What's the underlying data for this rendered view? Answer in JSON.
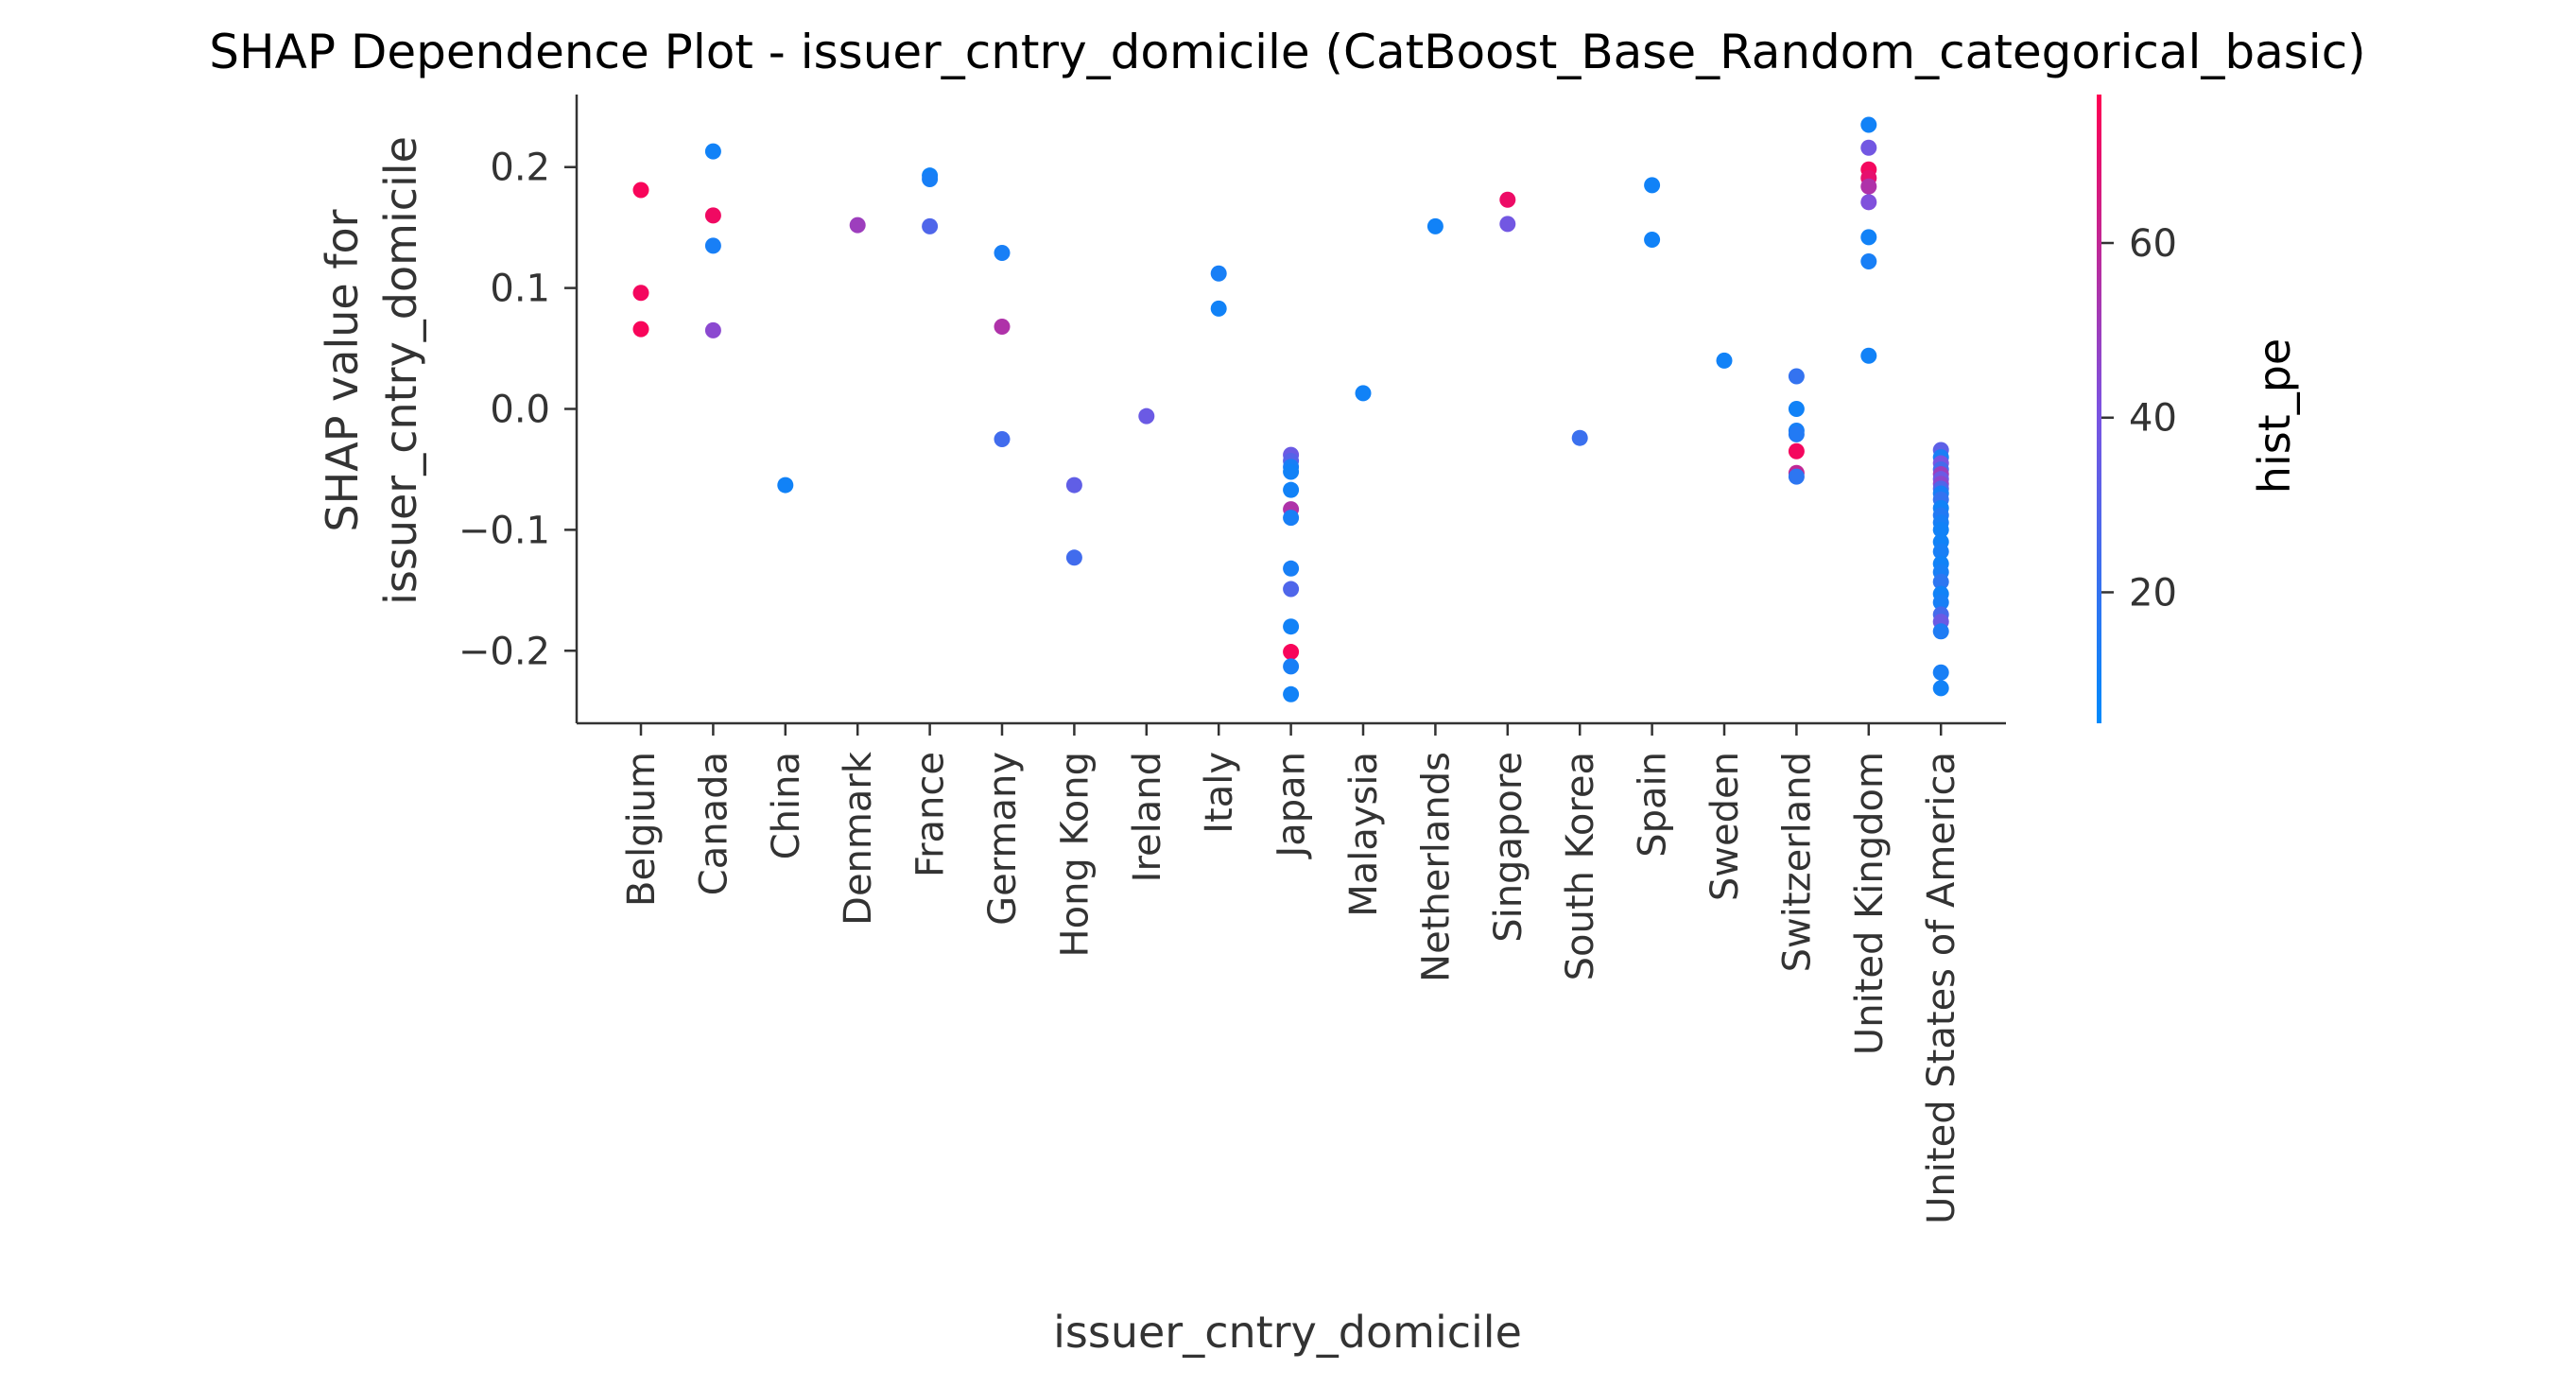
{
  "chart_data": {
    "type": "scatter",
    "title": "SHAP Dependence Plot - issuer_cntry_domicile (CatBoost_Base_Random_categorical_basic)",
    "xlabel": "issuer_cntry_domicile",
    "ylabel": [
      "SHAP value for",
      "issuer_cntry_domicile"
    ],
    "ylim": [
      -0.26,
      0.26
    ],
    "yticks": [
      -0.2,
      -0.1,
      0.0,
      0.1,
      0.2
    ],
    "ytick_labels": [
      "−0.2",
      "−0.1",
      "0.0",
      "0.1",
      "0.2"
    ],
    "categories": [
      "Belgium",
      "Canada",
      "China",
      "Denmark",
      "France",
      "Germany",
      "Hong Kong",
      "Ireland",
      "Italy",
      "Japan",
      "Malaysia",
      "Netherlands",
      "Singapore",
      "South Korea",
      "Spain",
      "Sweden",
      "Switzerland",
      "United Kingdom",
      "United States of America"
    ],
    "colorbar": {
      "label": "hist_pe",
      "range": [
        5,
        77
      ],
      "ticks": [
        20,
        40,
        60
      ],
      "tick_labels": [
        "20",
        "40",
        "60"
      ],
      "low_color": "#008afb",
      "mid_color": "#7c52e0",
      "high_color": "#ff0052"
    },
    "points": [
      {
        "category": "Belgium",
        "shap": 0.181,
        "hist_pe": 75
      },
      {
        "category": "Belgium",
        "shap": 0.096,
        "hist_pe": 74
      },
      {
        "category": "Belgium",
        "shap": 0.066,
        "hist_pe": 75
      },
      {
        "category": "Canada",
        "shap": 0.213,
        "hist_pe": 10
      },
      {
        "category": "Canada",
        "shap": 0.16,
        "hist_pe": 73
      },
      {
        "category": "Canada",
        "shap": 0.135,
        "hist_pe": 12
      },
      {
        "category": "Canada",
        "shap": 0.065,
        "hist_pe": 45
      },
      {
        "category": "China",
        "shap": -0.063,
        "hist_pe": 10
      },
      {
        "category": "Denmark",
        "shap": 0.152,
        "hist_pe": 50
      },
      {
        "category": "France",
        "shap": 0.193,
        "hist_pe": 10
      },
      {
        "category": "France",
        "shap": 0.19,
        "hist_pe": 12
      },
      {
        "category": "France",
        "shap": 0.151,
        "hist_pe": 28
      },
      {
        "category": "Germany",
        "shap": 0.129,
        "hist_pe": 12
      },
      {
        "category": "Germany",
        "shap": 0.068,
        "hist_pe": 55
      },
      {
        "category": "Germany",
        "shap": -0.025,
        "hist_pe": 24
      },
      {
        "category": "Hong Kong",
        "shap": -0.063,
        "hist_pe": 33
      },
      {
        "category": "Hong Kong",
        "shap": -0.123,
        "hist_pe": 24
      },
      {
        "category": "Ireland",
        "shap": -0.006,
        "hist_pe": 36
      },
      {
        "category": "Italy",
        "shap": 0.112,
        "hist_pe": 12
      },
      {
        "category": "Italy",
        "shap": 0.083,
        "hist_pe": 10
      },
      {
        "category": "Japan",
        "shap": -0.038,
        "hist_pe": 36
      },
      {
        "category": "Japan",
        "shap": -0.043,
        "hist_pe": 30
      },
      {
        "category": "Japan",
        "shap": -0.048,
        "hist_pe": 12
      },
      {
        "category": "Japan",
        "shap": -0.052,
        "hist_pe": 10
      },
      {
        "category": "Japan",
        "shap": -0.067,
        "hist_pe": 10
      },
      {
        "category": "Japan",
        "shap": -0.083,
        "hist_pe": 55
      },
      {
        "category": "Japan",
        "shap": -0.09,
        "hist_pe": 12
      },
      {
        "category": "Japan",
        "shap": -0.132,
        "hist_pe": 12
      },
      {
        "category": "Japan",
        "shap": -0.149,
        "hist_pe": 28
      },
      {
        "category": "Japan",
        "shap": -0.18,
        "hist_pe": 10
      },
      {
        "category": "Japan",
        "shap": -0.201,
        "hist_pe": 75
      },
      {
        "category": "Japan",
        "shap": -0.213,
        "hist_pe": 12
      },
      {
        "category": "Japan",
        "shap": -0.236,
        "hist_pe": 10
      },
      {
        "category": "Malaysia",
        "shap": 0.013,
        "hist_pe": 10
      },
      {
        "category": "Netherlands",
        "shap": 0.151,
        "hist_pe": 10
      },
      {
        "category": "Singapore",
        "shap": 0.173,
        "hist_pe": 72
      },
      {
        "category": "Singapore",
        "shap": 0.153,
        "hist_pe": 38
      },
      {
        "category": "South Korea",
        "shap": -0.024,
        "hist_pe": 22
      },
      {
        "category": "Spain",
        "shap": 0.185,
        "hist_pe": 10
      },
      {
        "category": "Spain",
        "shap": 0.14,
        "hist_pe": 10
      },
      {
        "category": "Sweden",
        "shap": 0.04,
        "hist_pe": 10
      },
      {
        "category": "Switzerland",
        "shap": 0.027,
        "hist_pe": 20
      },
      {
        "category": "Switzerland",
        "shap": 0.0,
        "hist_pe": 10
      },
      {
        "category": "Switzerland",
        "shap": -0.018,
        "hist_pe": 12
      },
      {
        "category": "Switzerland",
        "shap": -0.021,
        "hist_pe": 15
      },
      {
        "category": "Switzerland",
        "shap": -0.035,
        "hist_pe": 74
      },
      {
        "category": "Switzerland",
        "shap": -0.053,
        "hist_pe": 60
      },
      {
        "category": "Switzerland",
        "shap": -0.056,
        "hist_pe": 18
      },
      {
        "category": "United Kingdom",
        "shap": 0.235,
        "hist_pe": 10
      },
      {
        "category": "United Kingdom",
        "shap": 0.216,
        "hist_pe": 38
      },
      {
        "category": "United Kingdom",
        "shap": 0.198,
        "hist_pe": 74
      },
      {
        "category": "United Kingdom",
        "shap": 0.191,
        "hist_pe": 70
      },
      {
        "category": "United Kingdom",
        "shap": 0.184,
        "hist_pe": 55
      },
      {
        "category": "United Kingdom",
        "shap": 0.171,
        "hist_pe": 42
      },
      {
        "category": "United Kingdom",
        "shap": 0.142,
        "hist_pe": 10
      },
      {
        "category": "United Kingdom",
        "shap": 0.122,
        "hist_pe": 12
      },
      {
        "category": "United Kingdom",
        "shap": 0.044,
        "hist_pe": 10
      },
      {
        "category": "United States of America",
        "shap": -0.034,
        "hist_pe": 32
      },
      {
        "category": "United States of America",
        "shap": -0.04,
        "hist_pe": 12
      },
      {
        "category": "United States of America",
        "shap": -0.045,
        "hist_pe": 40
      },
      {
        "category": "United States of America",
        "shap": -0.05,
        "hist_pe": 25
      },
      {
        "category": "United States of America",
        "shap": -0.054,
        "hist_pe": 50
      },
      {
        "category": "United States of America",
        "shap": -0.058,
        "hist_pe": 36
      },
      {
        "category": "United States of America",
        "shap": -0.062,
        "hist_pe": 46
      },
      {
        "category": "United States of America",
        "shap": -0.066,
        "hist_pe": 28
      },
      {
        "category": "United States of America",
        "shap": -0.07,
        "hist_pe": 12
      },
      {
        "category": "United States of America",
        "shap": -0.075,
        "hist_pe": 20
      },
      {
        "category": "United States of America",
        "shap": -0.082,
        "hist_pe": 10
      },
      {
        "category": "United States of America",
        "shap": -0.088,
        "hist_pe": 15
      },
      {
        "category": "United States of America",
        "shap": -0.094,
        "hist_pe": 12
      },
      {
        "category": "United States of America",
        "shap": -0.1,
        "hist_pe": 10
      },
      {
        "category": "United States of America",
        "shap": -0.11,
        "hist_pe": 10
      },
      {
        "category": "United States of America",
        "shap": -0.118,
        "hist_pe": 12
      },
      {
        "category": "United States of America",
        "shap": -0.128,
        "hist_pe": 10
      },
      {
        "category": "United States of America",
        "shap": -0.135,
        "hist_pe": 12
      },
      {
        "category": "United States of America",
        "shap": -0.143,
        "hist_pe": 18
      },
      {
        "category": "United States of America",
        "shap": -0.153,
        "hist_pe": 10
      },
      {
        "category": "United States of America",
        "shap": -0.16,
        "hist_pe": 12
      },
      {
        "category": "United States of America",
        "shap": -0.17,
        "hist_pe": 25
      },
      {
        "category": "United States of America",
        "shap": -0.176,
        "hist_pe": 36
      },
      {
        "category": "United States of America",
        "shap": -0.184,
        "hist_pe": 14
      },
      {
        "category": "United States of America",
        "shap": -0.218,
        "hist_pe": 12
      },
      {
        "category": "United States of America",
        "shap": -0.231,
        "hist_pe": 10
      }
    ]
  }
}
